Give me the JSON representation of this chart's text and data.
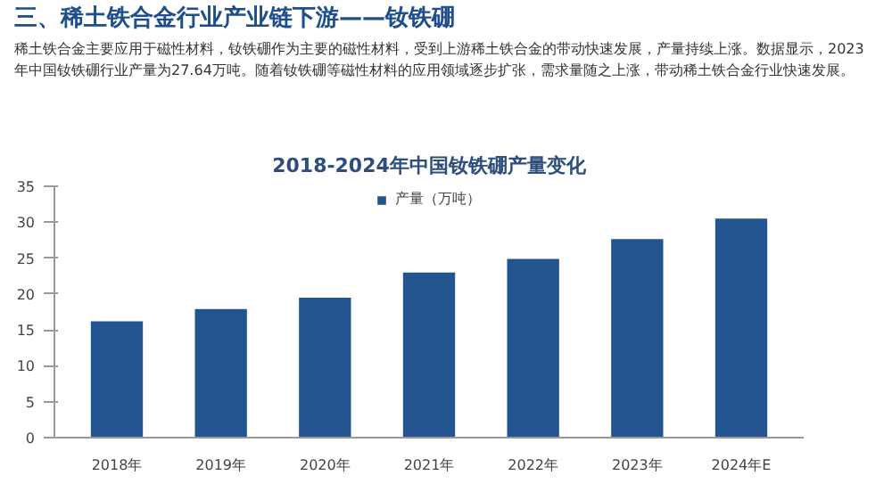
{
  "chart_data": {
    "type": "bar",
    "title": "三、稀土铁合金行业产业链下游——钕铁硼",
    "subtitle": "2018-2024年中国钕铁硼产量变化",
    "annotations": [
      "稀土铁合金主要应用于磁性材料，钕铁硼作为主要的磁性材料，受到上游稀土铁合金的带动快速发展，产量持续上涨。数据显示，2023年中国钕铁硼行业产量为27.64万吨。随着钕铁硼等磁性材料的应用领域逐步扩张，需求量随之上涨，带动稀土铁合金行业快速发展。"
    ],
    "categories": [
      "2018年",
      "2019年",
      "2020年",
      "2021年",
      "2022年",
      "2023年",
      "2024年E"
    ],
    "series": [
      {
        "name": "产量（万吨）",
        "color": "#22558f",
        "values": [
          16.2,
          17.9,
          19.5,
          23.0,
          24.9,
          27.64,
          30.5
        ]
      }
    ],
    "ylim": [
      0,
      35
    ],
    "yticks": [
      0,
      5,
      10,
      15,
      20,
      25,
      30,
      35
    ],
    "grid": false,
    "legend": "top"
  }
}
